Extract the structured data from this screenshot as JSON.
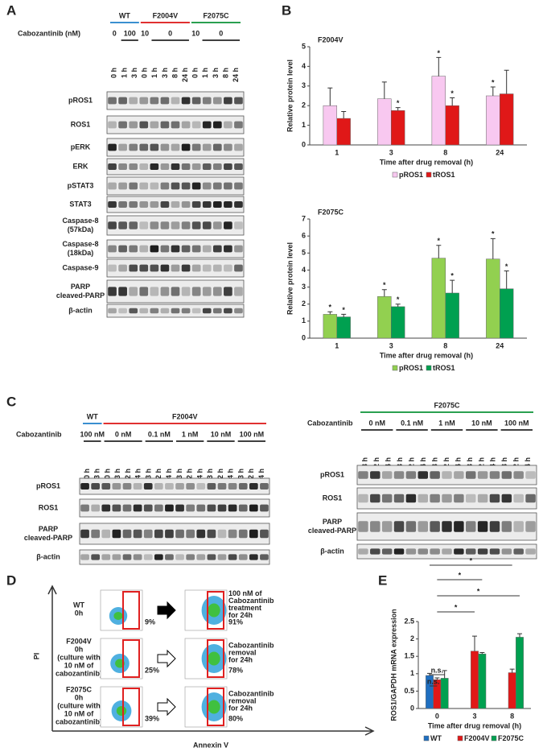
{
  "panel_a": {
    "label": "A",
    "groups": [
      {
        "name": "WT",
        "color": "#3a8fd0"
      },
      {
        "name": "F2004V",
        "color": "#e03030"
      },
      {
        "name": "F2075C",
        "color": "#2aa050"
      }
    ],
    "treatment": "Cabozantinib (nM)",
    "doses": [
      "0",
      "100",
      "10",
      "0",
      "10",
      "0"
    ],
    "times": [
      "0 h",
      "1 h",
      "3 h",
      "0 h",
      "1 h",
      "3 h",
      "8 h",
      "24 h",
      "0 h",
      "1 h",
      "3 h",
      "8 h",
      "24 h"
    ],
    "rows": [
      [
        "pROS1"
      ],
      [
        "ROS1"
      ],
      [
        "pERK"
      ],
      [
        "ERK"
      ],
      [
        "pSTAT3"
      ],
      [
        "STAT3"
      ],
      [
        "Caspase-8",
        "(57kDa)"
      ],
      [
        "Caspase-8",
        "(18kDa)"
      ],
      [
        "Caspase-9"
      ],
      [
        "PARP",
        "cleaved-PARP"
      ],
      [
        "β-actin"
      ]
    ]
  },
  "panel_b": {
    "label": "B"
  },
  "chart_data": [
    {
      "type": "bar",
      "title": "F2004V",
      "ylabel": "Relative protein level",
      "xlabel": "Time after drug removal (h)",
      "categories": [
        "1",
        "3",
        "8",
        "24"
      ],
      "ylim": [
        0,
        5
      ],
      "yticks": [
        0,
        1,
        2,
        3,
        4,
        5
      ],
      "series": [
        {
          "name": "pROS1",
          "color": "#f8c8f0",
          "values": [
            2.0,
            2.35,
            3.5,
            2.5
          ],
          "errors": [
            0.9,
            0.85,
            0.95,
            0.45
          ],
          "annotations": [
            null,
            null,
            "*",
            "*"
          ]
        },
        {
          "name": "tROS1",
          "color": "#e01818",
          "values": [
            1.35,
            1.75,
            2.0,
            2.6
          ],
          "errors": [
            0.35,
            0.15,
            0.4,
            1.2
          ],
          "annotations": [
            null,
            "*",
            "*",
            null
          ]
        }
      ]
    },
    {
      "type": "bar",
      "title": "F2075C",
      "ylabel": "Relative protein level",
      "xlabel": "Time after drug removal (h)",
      "categories": [
        "1",
        "3",
        "8",
        "24"
      ],
      "ylim": [
        0,
        7
      ],
      "yticks": [
        0,
        1,
        2,
        3,
        4,
        5,
        6,
        7
      ],
      "series": [
        {
          "name": "pROS1",
          "color": "#92d050",
          "values": [
            1.4,
            2.45,
            4.7,
            4.65
          ],
          "errors": [
            0.15,
            0.4,
            0.75,
            1.2
          ],
          "annotations": [
            "*",
            "*",
            "*",
            "*"
          ]
        },
        {
          "name": "tROS1",
          "color": "#00a050",
          "values": [
            1.25,
            1.85,
            2.65,
            2.9
          ],
          "errors": [
            0.15,
            0.15,
            0.75,
            1.05
          ],
          "annotations": [
            "*",
            "*",
            "*",
            "*"
          ]
        }
      ]
    },
    {
      "type": "bar",
      "ylabel": "ROS1/GAPDH mRNA expression",
      "xlabel": "Time after drug removal (h)",
      "categories": [
        "0",
        "3",
        "8"
      ],
      "ylim": [
        0,
        2.5
      ],
      "yticks": [
        0,
        0.5,
        1,
        1.5,
        2,
        2.5
      ],
      "series": [
        {
          "name": "WT",
          "color": "#1f6fc0",
          "values": [
            0.95,
            null,
            null
          ],
          "errors": [
            0.06,
            null,
            null
          ]
        },
        {
          "name": "F2004V",
          "color": "#e01818",
          "values": [
            0.83,
            1.65,
            1.03
          ],
          "errors": [
            0.05,
            0.43,
            0.1
          ]
        },
        {
          "name": "F2075C",
          "color": "#00a050",
          "values": [
            0.87,
            1.57,
            2.05
          ],
          "errors": [
            0.22,
            0.04,
            0.1
          ]
        }
      ],
      "comparisons": [
        "n.s.",
        "n.s.",
        "*",
        "*",
        "*",
        "*"
      ]
    }
  ],
  "panel_c": {
    "label": "C",
    "left": {
      "groups": [
        {
          "name": "WT",
          "color": "#3a8fd0"
        },
        {
          "name": "F2004V",
          "color": "#e03030"
        }
      ],
      "treatment": "Cabozantinib",
      "doses": [
        "100 nM",
        "0 nM",
        "0.1 nM",
        "1 nM",
        "10 nM",
        "100 nM"
      ],
      "times": [
        "0 h",
        "3 h",
        "0 h",
        "3 h",
        "12 h",
        "24 h",
        "3 h",
        "12 h",
        "24 h",
        "3 h",
        "12 h",
        "24 h",
        "3 h",
        "12 h",
        "24 h",
        "3 h",
        "12 h",
        "24 h"
      ],
      "rows": [
        [
          "pROS1"
        ],
        [
          "ROS1"
        ],
        [
          "PARP",
          "cleaved-PARP"
        ],
        [
          "β-actin"
        ]
      ]
    },
    "right": {
      "groups": [
        {
          "name": "F2075C",
          "color": "#2aa050"
        }
      ],
      "treatment": "Cabozantinib",
      "doses": [
        "0 nM",
        "0.1 nM",
        "1 nM",
        "10 nM",
        "100 nM"
      ],
      "times": [
        "3 h",
        "12 h",
        "24 h",
        "3 h",
        "12 h",
        "24 h",
        "3 h",
        "12 h",
        "24 h",
        "3 h",
        "12 h",
        "24 h",
        "3 h",
        "12 h",
        "24 h"
      ],
      "rows": [
        [
          "pROS1"
        ],
        [
          "ROS1"
        ],
        [
          "PARP",
          "cleaved-PARP"
        ],
        [
          "β-actin"
        ]
      ]
    }
  },
  "panel_d": {
    "label": "D",
    "ylabel": "PI",
    "xlabel": "Annexin V",
    "rows": [
      {
        "sample": [
          "WT",
          "0h"
        ],
        "before": "9%",
        "after": "91%",
        "treatment": [
          "100 nM of",
          "Cabozantinib",
          "treatment",
          "for 24h"
        ]
      },
      {
        "sample": [
          "F2004V",
          "0h",
          "(culture with",
          "10 nM of",
          "cabozantinib)"
        ],
        "before": "25%",
        "after": "78%",
        "treatment": [
          "Cabozantinib",
          "removal",
          "for 24h"
        ]
      },
      {
        "sample": [
          "F2075C",
          "0h",
          "(culture with",
          "10 nM of",
          "cabozantinib)"
        ],
        "before": "39%",
        "after": "80%",
        "treatment": [
          "Cabozantinib",
          "removal",
          "for 24h"
        ]
      }
    ]
  },
  "panel_e": {
    "label": "E"
  }
}
